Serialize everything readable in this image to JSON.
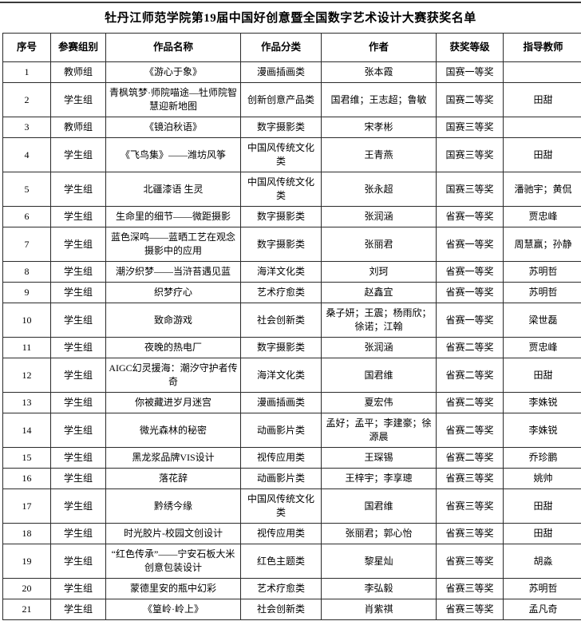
{
  "page": {
    "title": "牡丹江师范学院第19届中国好创意暨全国数字艺术设计大赛获奖名单"
  },
  "colors": {
    "background": "#ffffff",
    "text": "#000000",
    "border": "#2b2b2b"
  },
  "table": {
    "columns": [
      {
        "key": "no",
        "label": "序号"
      },
      {
        "key": "group",
        "label": "参赛组别"
      },
      {
        "key": "work",
        "label": "作品名称"
      },
      {
        "key": "category",
        "label": "作品分类"
      },
      {
        "key": "authors",
        "label": "作者"
      },
      {
        "key": "award",
        "label": "获奖等级"
      },
      {
        "key": "advisor",
        "label": "指导教师"
      }
    ],
    "rows": [
      {
        "no": "1",
        "group": "教师组",
        "work": "《游心于象》",
        "category": "漫画插画类",
        "authors": "张本霞",
        "award": "国赛一等奖",
        "advisor": ""
      },
      {
        "no": "2",
        "group": "学生组",
        "work": "青枫筑梦·师院喵途—牡师院智慧迎新地图",
        "category": "创新创意产品类",
        "authors": "国君维；王志超；鲁敏",
        "award": "国赛二等奖",
        "advisor": "田甜"
      },
      {
        "no": "3",
        "group": "教师组",
        "work": "《镜泊秋语》",
        "category": "数字摄影类",
        "authors": "宋孝彬",
        "award": "国赛三等奖",
        "advisor": ""
      },
      {
        "no": "4",
        "group": "学生组",
        "work": "《飞鸟集》——潍坊风筝",
        "category": "中国风传统文化类",
        "authors": "王青燕",
        "award": "国赛三等奖",
        "advisor": "田甜"
      },
      {
        "no": "5",
        "group": "学生组",
        "work": "北疆漆语 生灵",
        "category": "中国风传统文化类",
        "authors": "张永超",
        "award": "国赛三等奖",
        "advisor": "潘驰宇；黄侃"
      },
      {
        "no": "6",
        "group": "学生组",
        "work": "生命里的细节——微距摄影",
        "category": "数字摄影类",
        "authors": "张润涵",
        "award": "省赛一等奖",
        "advisor": "贾忠峰"
      },
      {
        "no": "7",
        "group": "学生组",
        "work": "蓝色深鸣——蓝晒工艺在观念摄影中的应用",
        "category": "数字摄影类",
        "authors": "张丽君",
        "award": "省赛一等奖",
        "advisor": "周慧赢；孙静"
      },
      {
        "no": "8",
        "group": "学生组",
        "work": "潮汐织梦——当浒苔遇见蓝",
        "category": "海洋文化类",
        "authors": "刘珂",
        "award": "省赛一等奖",
        "advisor": "苏明哲"
      },
      {
        "no": "9",
        "group": "学生组",
        "work": "织梦疗心",
        "category": "艺术疗愈类",
        "authors": "赵鑫宜",
        "award": "省赛一等奖",
        "advisor": "苏明哲"
      },
      {
        "no": "10",
        "group": "学生组",
        "work": "致命游戏",
        "category": "社会创新类",
        "authors": "桑子妍；王震；杨雨欣；徐诺；江翰",
        "award": "省赛一等奖",
        "advisor": "梁世磊"
      },
      {
        "no": "11",
        "group": "学生组",
        "work": "夜晚的热电厂",
        "category": "数字摄影类",
        "authors": "张润涵",
        "award": "省赛二等奖",
        "advisor": "贾忠峰"
      },
      {
        "no": "12",
        "group": "学生组",
        "work": "AIGC幻灵援海：潮汐守护者传奇",
        "category": "海洋文化类",
        "authors": "国君维",
        "award": "省赛二等奖",
        "advisor": "田甜"
      },
      {
        "no": "13",
        "group": "学生组",
        "work": "你被藏进岁月迷宫",
        "category": "漫画插画类",
        "authors": "夏宏伟",
        "award": "省赛二等奖",
        "advisor": "李姝锐"
      },
      {
        "no": "14",
        "group": "学生组",
        "work": "微光森林的秘密",
        "category": "动画影片类",
        "authors": "孟好；孟平；李建豪；徐源晨",
        "award": "省赛二等奖",
        "advisor": "李姝锐"
      },
      {
        "no": "15",
        "group": "学生组",
        "work": "黑龙浆品牌VIS设计",
        "category": "视传应用类",
        "authors": "王琛锡",
        "award": "省赛二等奖",
        "advisor": "乔珍鹏"
      },
      {
        "no": "16",
        "group": "学生组",
        "work": "落花辞",
        "category": "动画影片类",
        "authors": "王梓宇；李享璁",
        "award": "省赛三等奖",
        "advisor": "姚帅"
      },
      {
        "no": "17",
        "group": "学生组",
        "work": "黔绣今缘",
        "category": "中国风传统文化类",
        "authors": "国君维",
        "award": "省赛三等奖",
        "advisor": "田甜"
      },
      {
        "no": "18",
        "group": "学生组",
        "work": "时光胶片-校园文创设计",
        "category": "视传应用类",
        "authors": "张丽君；郭心怡",
        "award": "省赛三等奖",
        "advisor": "田甜"
      },
      {
        "no": "19",
        "group": "学生组",
        "work": "“红色传承”——宁安石板大米创意包装设计",
        "category": "红色主题类",
        "authors": "黎星灿",
        "award": "省赛三等奖",
        "advisor": "胡淼"
      },
      {
        "no": "20",
        "group": "学生组",
        "work": "蒙德里安的瓶中幻彩",
        "category": "艺术疗愈类",
        "authors": "李弘毅",
        "award": "省赛三等奖",
        "advisor": "苏明哲"
      },
      {
        "no": "21",
        "group": "学生组",
        "work": "《篁岭·岭上》",
        "category": "社会创新类",
        "authors": "肖紫祺",
        "award": "省赛三等奖",
        "advisor": "孟凡奇"
      }
    ]
  }
}
